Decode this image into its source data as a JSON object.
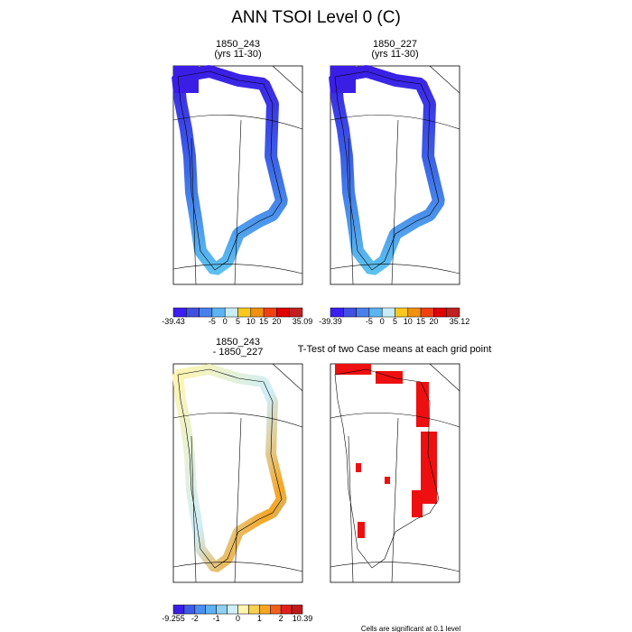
{
  "title": "ANN TSOI Level 0 (C)",
  "panels": [
    {
      "title": [
        "1850_243",
        "(yrs 11-30)"
      ]
    },
    {
      "title": [
        "1850_227",
        "(yrs 11-30)"
      ]
    },
    {
      "title": [
        "1850_243",
        "- 1850_227"
      ]
    },
    {
      "title": [
        "T-Test of two Case means at each grid point"
      ]
    }
  ],
  "colorbars": [
    {
      "colors": [
        "#3b1ff0",
        "#4050e0",
        "#4a80ec",
        "#5cb4f0",
        "#c8ecf8",
        "#f8c820",
        "#f09010",
        "#f04010",
        "#e00000",
        "#c02020"
      ],
      "labels": [
        "-39.43",
        null,
        null,
        "-5",
        "0",
        "5",
        "10",
        "15",
        "20",
        null,
        "35.09"
      ]
    },
    {
      "colors": [
        "#3b1ff0",
        "#4050e0",
        "#4a80ec",
        "#5cb4f0",
        "#c8ecf8",
        "#f8c820",
        "#f09010",
        "#f04010",
        "#e00000",
        "#c02020"
      ],
      "labels": [
        "-39.39",
        null,
        null,
        "-5",
        "0",
        "5",
        "10",
        "15",
        "20",
        null,
        "35.12"
      ]
    },
    {
      "colors": [
        "#3a1ee6",
        "#3d5ce8",
        "#4a8eee",
        "#5db0f2",
        "#8fd0f0",
        "#cfeef8",
        "#fff4b0",
        "#f8d050",
        "#f5a623",
        "#f06020",
        "#e02020",
        "#c01818"
      ],
      "labels": [
        "-9.255",
        null,
        "-2",
        null,
        "-1",
        null,
        "0",
        null,
        "1",
        null,
        "2",
        null,
        "10.39"
      ]
    }
  ],
  "footnote": "Cells are significant at 0.1 level"
}
